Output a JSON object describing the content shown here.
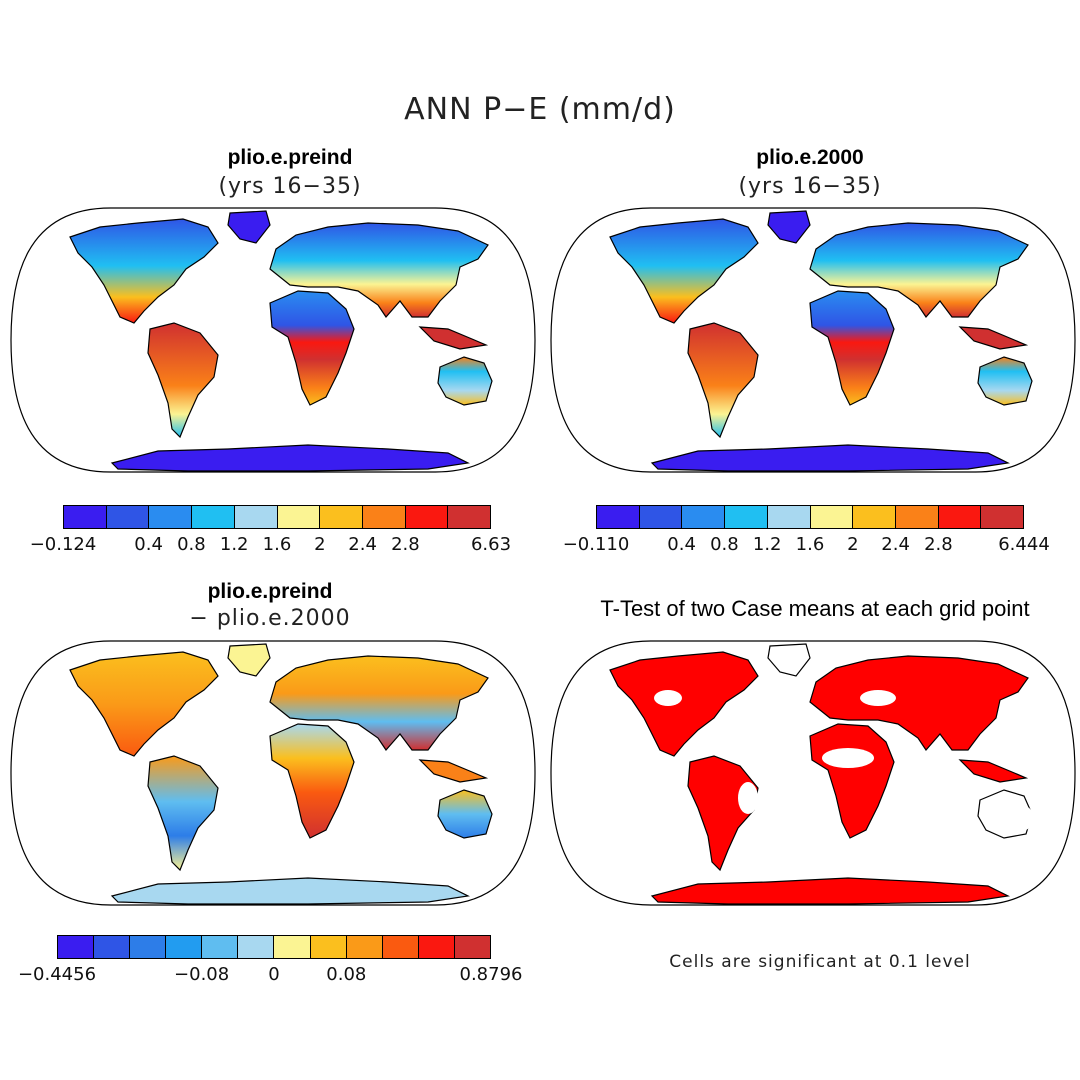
{
  "title": "ANN P−E (mm/d)",
  "panels": {
    "top_left": {
      "title": "plio.e.preind",
      "subtitle": "(yrs 16−35)",
      "colorbar": {
        "colors": [
          "#3a1df0",
          "#2f55e6",
          "#2a8cf0",
          "#20bff2",
          "#a8d8f0",
          "#fbf493",
          "#fbbf1e",
          "#fa8118",
          "#fa1810",
          "#d03030"
        ],
        "tick_labels": [
          "−0.124",
          "0.4",
          "0.8",
          "1.2",
          "1.6",
          "2",
          "2.4",
          "2.8",
          "6.63"
        ]
      }
    },
    "top_right": {
      "title": "plio.e.2000",
      "subtitle": "(yrs 16−35)",
      "colorbar": {
        "colors": [
          "#3a1df0",
          "#2f55e6",
          "#2a8cf0",
          "#20bff2",
          "#a8d8f0",
          "#fbf493",
          "#fbbf1e",
          "#fa8118",
          "#fa1810",
          "#d03030"
        ],
        "tick_labels": [
          "−0.110",
          "0.4",
          "0.8",
          "1.2",
          "1.6",
          "2",
          "2.4",
          "2.8",
          "6.444"
        ]
      }
    },
    "bottom_left": {
      "title": "plio.e.preind",
      "subtitle": "− plio.e.2000",
      "colorbar": {
        "colors": [
          "#3a1df0",
          "#2f55e6",
          "#2d7de8",
          "#229cf0",
          "#5fbdf0",
          "#a8d8f0",
          "#fbf493",
          "#fbbf1e",
          "#fa9a18",
          "#fa5a10",
          "#fa1810",
          "#d03030"
        ],
        "tick_labels": [
          "−0.4456",
          "−0.08",
          "0",
          "0.08",
          "0.8796"
        ]
      }
    },
    "bottom_right": {
      "title": "T-Test of two Case means at each grid point",
      "note": "Cells are significant at 0.1 level",
      "significant_color": "#ff0000"
    }
  }
}
